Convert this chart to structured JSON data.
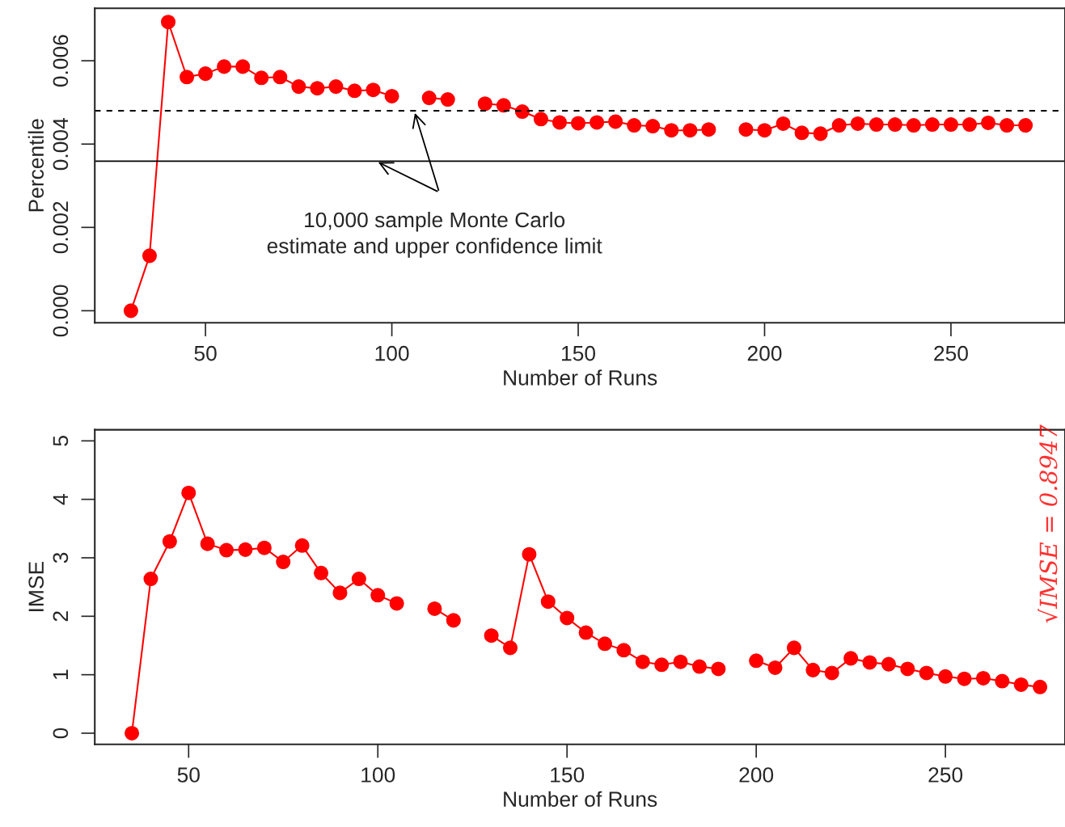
{
  "chart_data": [
    {
      "type": "line",
      "xlabel": "Number of Runs",
      "ylabel": "Percentile",
      "xlim": [
        20.3,
        280.6
      ],
      "ylim": [
        -0.00029,
        0.00726
      ],
      "xticks": [
        50,
        100,
        150,
        200,
        250
      ],
      "yticks": [
        {
          "value": 0,
          "label": "0.000"
        },
        {
          "value": 0.002,
          "label": "0.002"
        },
        {
          "value": 0.004,
          "label": "0.004"
        },
        {
          "value": 0.006,
          "label": "0.006"
        }
      ],
      "marker": "circle",
      "line_style": "solid",
      "grid": false,
      "legend": false,
      "x": [
        30,
        35,
        40,
        45,
        50,
        55,
        60,
        65,
        70,
        75,
        80,
        85,
        90,
        95,
        100,
        105,
        110,
        115,
        120,
        125,
        130,
        135,
        140,
        145,
        150,
        155,
        160,
        165,
        170,
        175,
        180,
        185,
        190,
        195,
        200,
        205,
        210,
        215,
        220,
        225,
        230,
        235,
        240,
        245,
        250,
        255,
        260,
        265,
        270
      ],
      "series": [
        {
          "color": "#ff0000",
          "values": [
            0,
            0.00132,
            0.00693,
            0.00561,
            0.00569,
            0.00586,
            0.00586,
            0.00559,
            0.00561,
            0.00538,
            0.00534,
            0.00538,
            0.00528,
            0.0053,
            0.00515,
            null,
            0.00511,
            0.00507,
            null,
            0.00497,
            0.00493,
            0.00478,
            0.0046,
            0.00452,
            0.0045,
            0.00452,
            0.00454,
            0.00445,
            0.00443,
            0.00433,
            0.00433,
            0.00435,
            null,
            0.00435,
            0.00433,
            0.00449,
            0.00427,
            0.00425,
            0.00445,
            0.00449,
            0.00447,
            0.00447,
            0.00445,
            0.00447,
            0.00447,
            0.00447,
            0.00451,
            0.00445,
            0.00445
          ]
        }
      ],
      "ref_lines": [
        {
          "axis": "y",
          "value": 0.0048,
          "line_style": "dashed",
          "color": "#000000"
        },
        {
          "axis": "y",
          "value": 0.00359,
          "line_style": "solid",
          "color": "#000000"
        }
      ],
      "annotations": [
        {
          "text": "10,000 sample Monte Carlo\nestimate and upper confidence limit",
          "x": 106,
          "y": 0.0048
        }
      ]
    },
    {
      "type": "line",
      "xlabel": "Number of Runs",
      "ylabel": "IMSE",
      "xlim": [
        25.2,
        281.6
      ],
      "ylim": [
        -0.19,
        5.19
      ],
      "xticks": [
        50,
        100,
        150,
        200,
        250
      ],
      "yticks": [
        0,
        1,
        2,
        3,
        4,
        5
      ],
      "marker": "circle",
      "line_style": "solid",
      "grid": false,
      "legend": false,
      "x": [
        35,
        40,
        45,
        50,
        55,
        60,
        65,
        70,
        75,
        80,
        85,
        90,
        95,
        100,
        105,
        110,
        115,
        120,
        125,
        130,
        135,
        140,
        145,
        150,
        155,
        160,
        165,
        170,
        175,
        180,
        185,
        190,
        195,
        200,
        205,
        210,
        215,
        220,
        225,
        230,
        235,
        240,
        245,
        250,
        255,
        260,
        265,
        270,
        275
      ],
      "series": [
        {
          "color": "#ff0000",
          "values": [
            0,
            2.64,
            3.28,
            4.11,
            3.24,
            3.13,
            3.14,
            3.17,
            2.93,
            3.21,
            2.74,
            2.4,
            2.64,
            2.36,
            2.22,
            null,
            2.13,
            1.93,
            null,
            1.67,
            1.46,
            3.06,
            2.25,
            1.97,
            1.72,
            1.53,
            1.42,
            1.22,
            1.17,
            1.22,
            1.14,
            1.1,
            null,
            1.24,
            1.12,
            1.46,
            1.08,
            1.03,
            1.28,
            1.21,
            1.18,
            1.1,
            1.03,
            0.97,
            0.93,
            0.94,
            0.89,
            0.83,
            0.79
          ]
        }
      ],
      "annotations": [
        "√IMSE = 0.8947"
      ]
    }
  ]
}
